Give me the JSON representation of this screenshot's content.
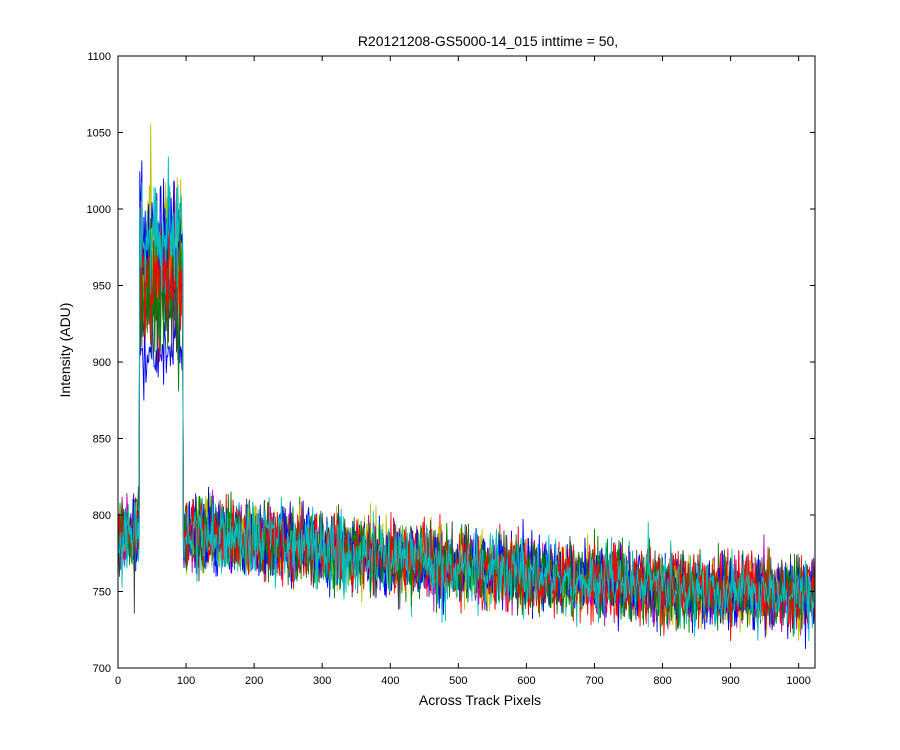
{
  "chart_data": {
    "type": "line",
    "title": "R20121208-GS5000-14_015 inttime = 50,",
    "xlabel": "Across Track Pixels",
    "ylabel": "Intensity (ADU)",
    "xlim": [
      0,
      1024
    ],
    "ylim": [
      700,
      1100
    ],
    "xticks": [
      0,
      100,
      200,
      300,
      400,
      500,
      600,
      700,
      800,
      900,
      1000
    ],
    "yticks": [
      700,
      750,
      800,
      850,
      900,
      950,
      1000,
      1050,
      1100
    ],
    "grid": false,
    "legend": "none",
    "n_points": 1024,
    "series_colors": [
      "#0000ff",
      "#008000",
      "#ff0000",
      "#00bfbf",
      "#bf00bf",
      "#bfbf00",
      "#404040",
      "#0000ff",
      "#008000",
      "#ff0000",
      "#00bfbf"
    ],
    "baseline_profile": {
      "x": [
        0,
        50,
        100,
        200,
        300,
        400,
        500,
        600,
        700,
        800,
        900,
        1024
      ],
      "y": [
        786,
        790,
        788,
        784,
        778,
        772,
        766,
        761,
        757,
        753,
        750,
        748
      ]
    },
    "peak_region": {
      "x_start": 32,
      "x_end": 95
    },
    "peak_levels": [
      905,
      945,
      955,
      960,
      965,
      975,
      930,
      980,
      960,
      955,
      985
    ],
    "noise_amplitude": 11
  }
}
